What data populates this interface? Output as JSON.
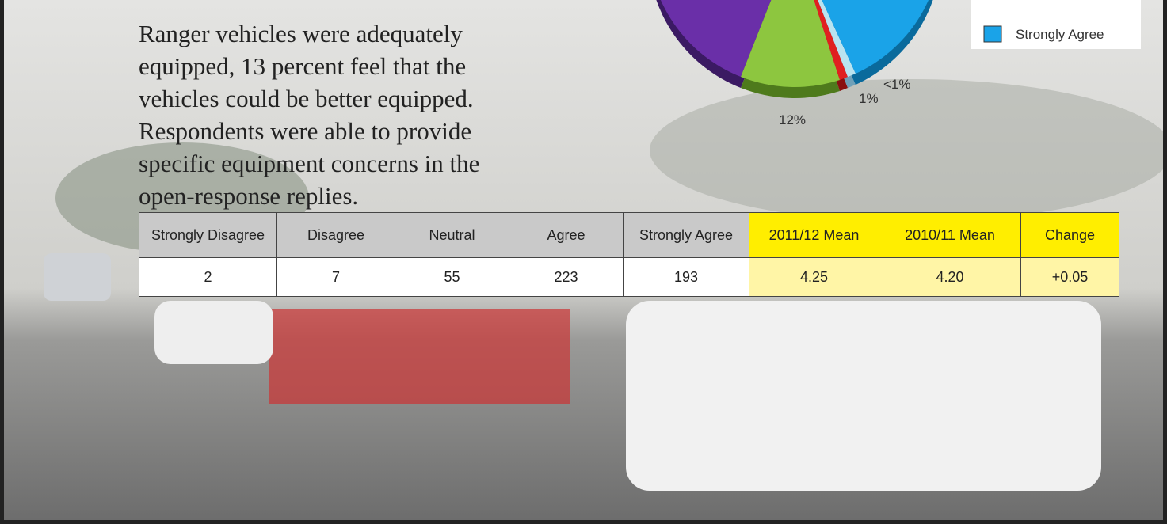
{
  "body_text": {
    "lines": [
      "Ranger vehicles were adequately",
      "equipped, 13 percent feel that the",
      "vehicles could be better equipped.",
      "Respondents were able to provide",
      "specific equipment concerns in the",
      "open-response replies."
    ]
  },
  "pie": {
    "labels": [
      "12%",
      "1%",
      "<1%"
    ],
    "legend": [
      "Strongly Agree"
    ]
  },
  "table": {
    "header": [
      "Strongly Disagree",
      "Disagree",
      "Neutral",
      "Agree",
      "Strongly Agree",
      "2011/12 Mean",
      "2010/11 Mean",
      "Change"
    ],
    "rows": [
      [
        "2",
        "7",
        "55",
        "223",
        "193",
        "4.25",
        "4.20",
        "+0.05"
      ]
    ]
  }
}
